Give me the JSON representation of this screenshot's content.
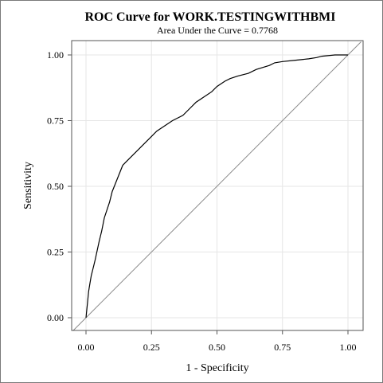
{
  "chart_data": {
    "type": "line",
    "title": "ROC Curve for WORK.TESTINGWITHBMI",
    "subtitle": "Area Under the Curve = 0.7768",
    "xlabel": "1 - Specificity",
    "ylabel": "Sensitivity",
    "xlim": [
      -0.05,
      1.06
    ],
    "ylim": [
      -0.05,
      1.05
    ],
    "xticks": [
      "0.00",
      "0.25",
      "0.50",
      "0.75",
      "1.00"
    ],
    "yticks": [
      "0.00",
      "0.25",
      "0.50",
      "0.75",
      "1.00"
    ],
    "grid": true,
    "series": [
      {
        "x": [
          0,
          0.003,
          0.006,
          0.01,
          0.015,
          0.02,
          0.03,
          0.035,
          0.05,
          0.06,
          0.07,
          0.08,
          0.09,
          0.1,
          0.12,
          0.14,
          0.15,
          0.17,
          0.2,
          0.22,
          0.25,
          0.27,
          0.3,
          0.33,
          0.37,
          0.4,
          0.42,
          0.45,
          0.48,
          0.5,
          0.53,
          0.55,
          0.58,
          0.62,
          0.65,
          0.7,
          0.72,
          0.75,
          0.8,
          0.85,
          0.88,
          0.9,
          0.95,
          1.0
        ],
        "y": [
          0,
          0.03,
          0.06,
          0.1,
          0.13,
          0.16,
          0.2,
          0.22,
          0.29,
          0.33,
          0.38,
          0.41,
          0.44,
          0.48,
          0.53,
          0.58,
          0.59,
          0.61,
          0.64,
          0.66,
          0.69,
          0.71,
          0.73,
          0.75,
          0.77,
          0.8,
          0.82,
          0.84,
          0.86,
          0.88,
          0.9,
          0.91,
          0.92,
          0.93,
          0.945,
          0.96,
          0.97,
          0.975,
          0.98,
          0.985,
          0.99,
          0.995,
          1.0,
          1.0
        ]
      }
    ],
    "reference_line": {
      "x": [
        0,
        1
      ],
      "y": [
        0,
        1
      ]
    }
  }
}
